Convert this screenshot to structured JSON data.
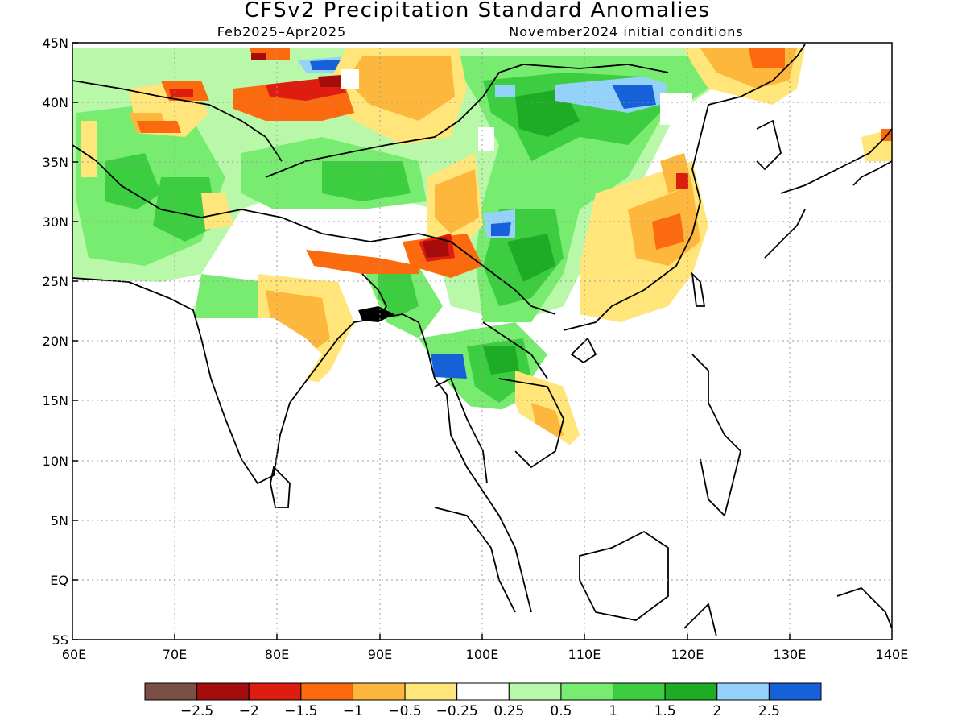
{
  "title": "CFSv2 Precipitation Standard Anomalies",
  "subtitle_left": "Feb2025–Apr2025",
  "subtitle_right": "November2024 initial conditions",
  "lat_ticks": [
    "45N",
    "40N",
    "35N",
    "30N",
    "25N",
    "20N",
    "15N",
    "10N",
    "5N",
    "EQ",
    "5S"
  ],
  "lon_ticks": [
    "60E",
    "70E",
    "80E",
    "90E",
    "100E",
    "110E",
    "120E",
    "130E",
    "140E"
  ],
  "colorbar": {
    "colors": [
      "#7a4f45",
      "#a50d0d",
      "#dc1d10",
      "#fb6a0f",
      "#fcb73c",
      "#ffe57a",
      "#ffffff",
      "#b8f8a8",
      "#78ec70",
      "#3ccd40",
      "#1eab25",
      "#94d2fa",
      "#1660d8"
    ],
    "labels": [
      "−2.5",
      "−2",
      "−1.5",
      "−1",
      "−0.5",
      "−0.25",
      "0.25",
      "0.5",
      "1",
      "1.5",
      "2",
      "2.5"
    ]
  }
}
